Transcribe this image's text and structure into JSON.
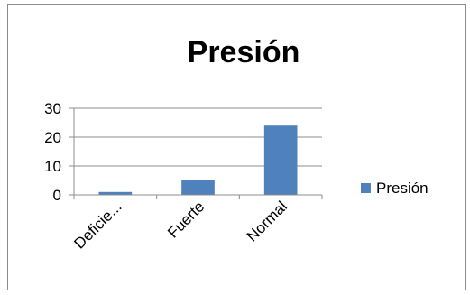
{
  "chart_data": {
    "type": "bar",
    "title": "Presión",
    "categories": [
      "Deficie...",
      "Fuerte",
      "Normal"
    ],
    "series": [
      {
        "name": "Presión",
        "values": [
          1,
          5,
          24
        ],
        "color": "#4f81bd"
      }
    ],
    "ylim": [
      0,
      30
    ],
    "yticks": [
      0,
      10,
      20,
      30
    ],
    "grid": true,
    "legend": "right"
  }
}
